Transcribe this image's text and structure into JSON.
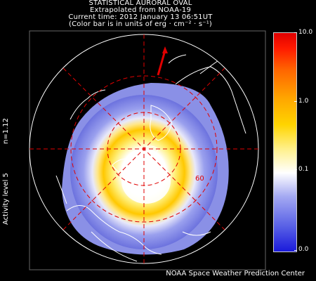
{
  "header": {
    "title": "STATISTICAL AURORAL OVAL",
    "source": "Extrapolated from NOAA-19",
    "current_time": "Current time: 2012 January 13 06:51UT",
    "units_note": "(Color bar is in units of erg · cm⁻² · s⁻¹)"
  },
  "side": {
    "n_value": "n=1.12",
    "activity": "Activity level 5"
  },
  "map": {
    "latitude_label": "60",
    "grid_color": "#e00000",
    "sun_pointer_color": "#e00000"
  },
  "colorbar": {
    "max_label": "10.0",
    "label_1": "1.0",
    "label_01": "0.1",
    "min_label": "0.0"
  },
  "footer": {
    "credit": "NOAA Space Weather Prediction Center"
  }
}
